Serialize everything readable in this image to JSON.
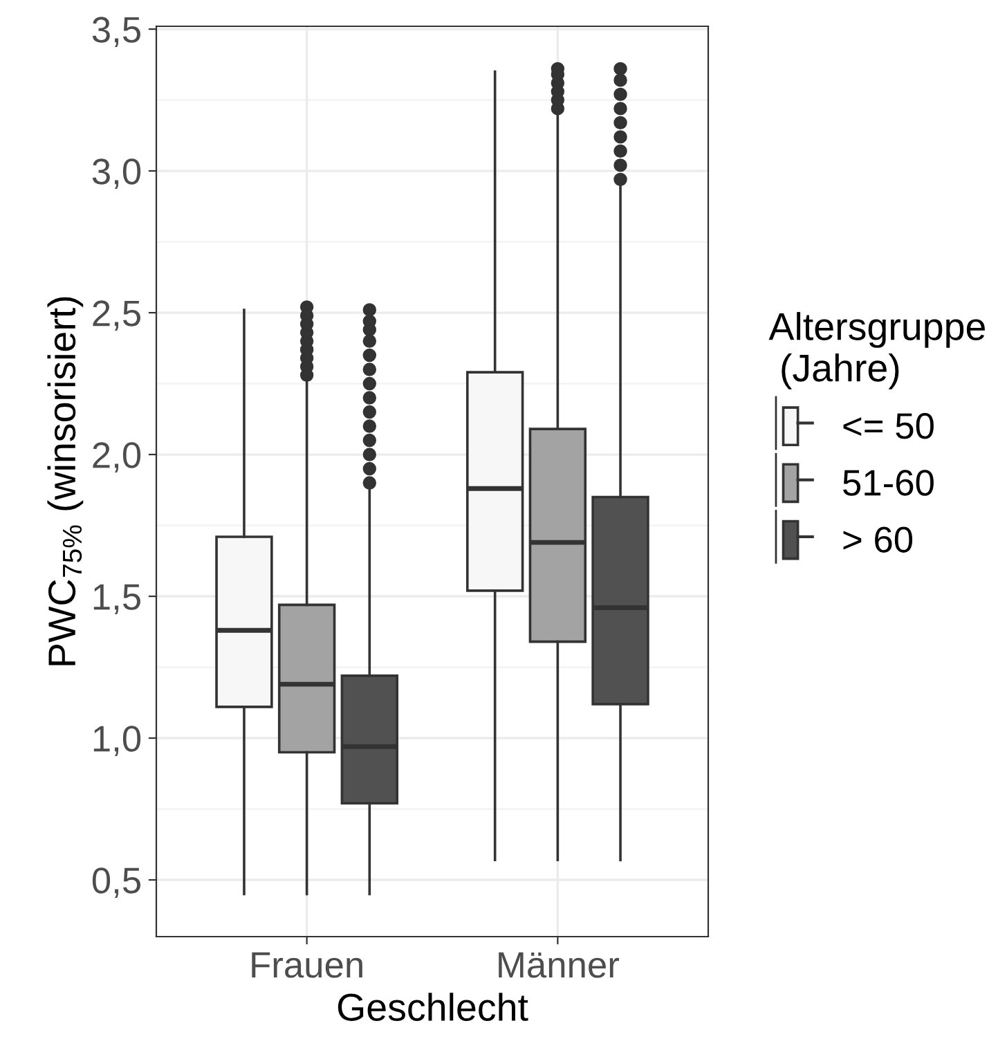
{
  "chart_data": {
    "type": "box",
    "xlabel": "Geschlecht",
    "ylabel": "PWC$_{75%}$ (winsorisiert)",
    "legend_title": "Altersgruppe\n (Jahre)",
    "categories": [
      "Frauen",
      "Männer"
    ],
    "ylim": [
      0.3,
      3.51
    ],
    "yticks": [
      {
        "value": 0.5,
        "label": "0,5"
      },
      {
        "value": 1.0,
        "label": "1,0"
      },
      {
        "value": 1.5,
        "label": "1,5"
      },
      {
        "value": 2.0,
        "label": "2,0"
      },
      {
        "value": 2.5,
        "label": "2,5"
      },
      {
        "value": 3.0,
        "label": "3,0"
      },
      {
        "value": 3.5,
        "label": "3,5"
      }
    ],
    "grid": true,
    "legend": "right",
    "series": [
      {
        "name": "<= 50",
        "color": "#f7f7f7",
        "boxes": [
          {
            "low": 0.45,
            "q1": 1.11,
            "median": 1.38,
            "q3": 1.71,
            "high": 2.51
          },
          {
            "low": 0.57,
            "q1": 1.52,
            "median": 1.88,
            "q3": 2.29,
            "high": 3.35
          }
        ]
      },
      {
        "name": "51-60",
        "color": "#a3a3a3",
        "boxes": [
          {
            "low": 0.45,
            "q1": 0.95,
            "median": 1.19,
            "q3": 1.47,
            "high": 2.26,
            "outliers": [
              2.28,
              2.31,
              2.34,
              2.37,
              2.4,
              2.43,
              2.46,
              2.49,
              2.52
            ]
          },
          {
            "low": 0.57,
            "q1": 1.34,
            "median": 1.69,
            "q3": 2.09,
            "high": 3.21,
            "outliers": [
              3.22,
              3.25,
              3.28,
              3.31,
              3.34,
              3.36
            ]
          }
        ]
      },
      {
        "name": "> 60",
        "color": "#515151",
        "boxes": [
          {
            "low": 0.45,
            "q1": 0.77,
            "median": 0.97,
            "q3": 1.22,
            "high": 1.89,
            "outliers": [
              1.9,
              1.95,
              2.0,
              2.05,
              2.1,
              2.15,
              2.2,
              2.25,
              2.3,
              2.35,
              2.4,
              2.44,
              2.47,
              2.51
            ]
          },
          {
            "low": 0.57,
            "q1": 1.12,
            "median": 1.46,
            "q3": 1.85,
            "high": 2.96,
            "outliers": [
              2.97,
              3.02,
              3.07,
              3.12,
              3.17,
              3.22,
              3.27,
              3.32,
              3.36
            ]
          }
        ]
      }
    ]
  }
}
